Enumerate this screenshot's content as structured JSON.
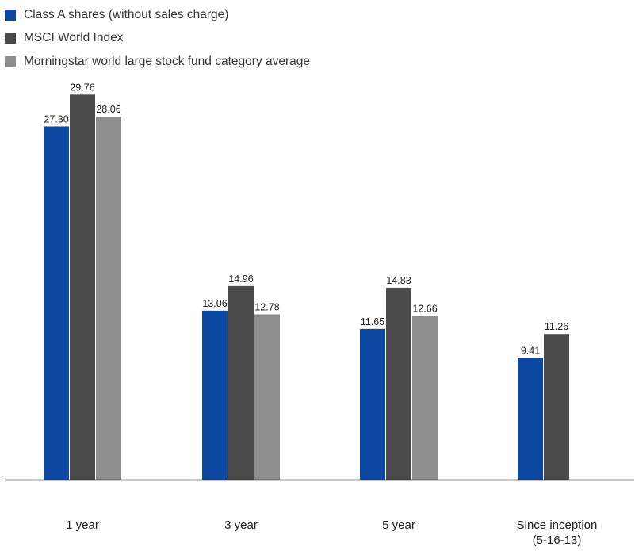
{
  "legend": [
    {
      "label": "Class A shares (without sales charge)",
      "color": "#0c47a1"
    },
    {
      "label": "MSCI World Index",
      "color": "#4a4a4a"
    },
    {
      "label": "Morningstar world large stock fund category average",
      "color": "#8d8d8d"
    }
  ],
  "chart_data": {
    "type": "bar",
    "categories": [
      [
        "1 year"
      ],
      [
        "3 year"
      ],
      [
        "5 year"
      ],
      [
        "Since inception",
        "(5-16-13)"
      ]
    ],
    "series": [
      {
        "name": "Class A shares (without sales charge)",
        "color": "#0c47a1",
        "values": [
          27.3,
          13.06,
          11.65,
          9.41
        ],
        "labels": [
          "27.30",
          "13.06",
          "11.65",
          "9.41"
        ]
      },
      {
        "name": "MSCI World Index",
        "color": "#4a4a4a",
        "values": [
          29.76,
          14.96,
          14.83,
          11.26
        ],
        "labels": [
          "29.76",
          "14.96",
          "14.83",
          "11.26"
        ]
      },
      {
        "name": "Morningstar world large stock fund category average",
        "color": "#8d8d8d",
        "values": [
          28.06,
          12.78,
          12.66,
          null
        ],
        "labels": [
          "28.06",
          "12.78",
          "12.66",
          ""
        ]
      }
    ],
    "ylim": [
      0,
      30
    ],
    "grid": false,
    "legend_position": "top-left"
  }
}
